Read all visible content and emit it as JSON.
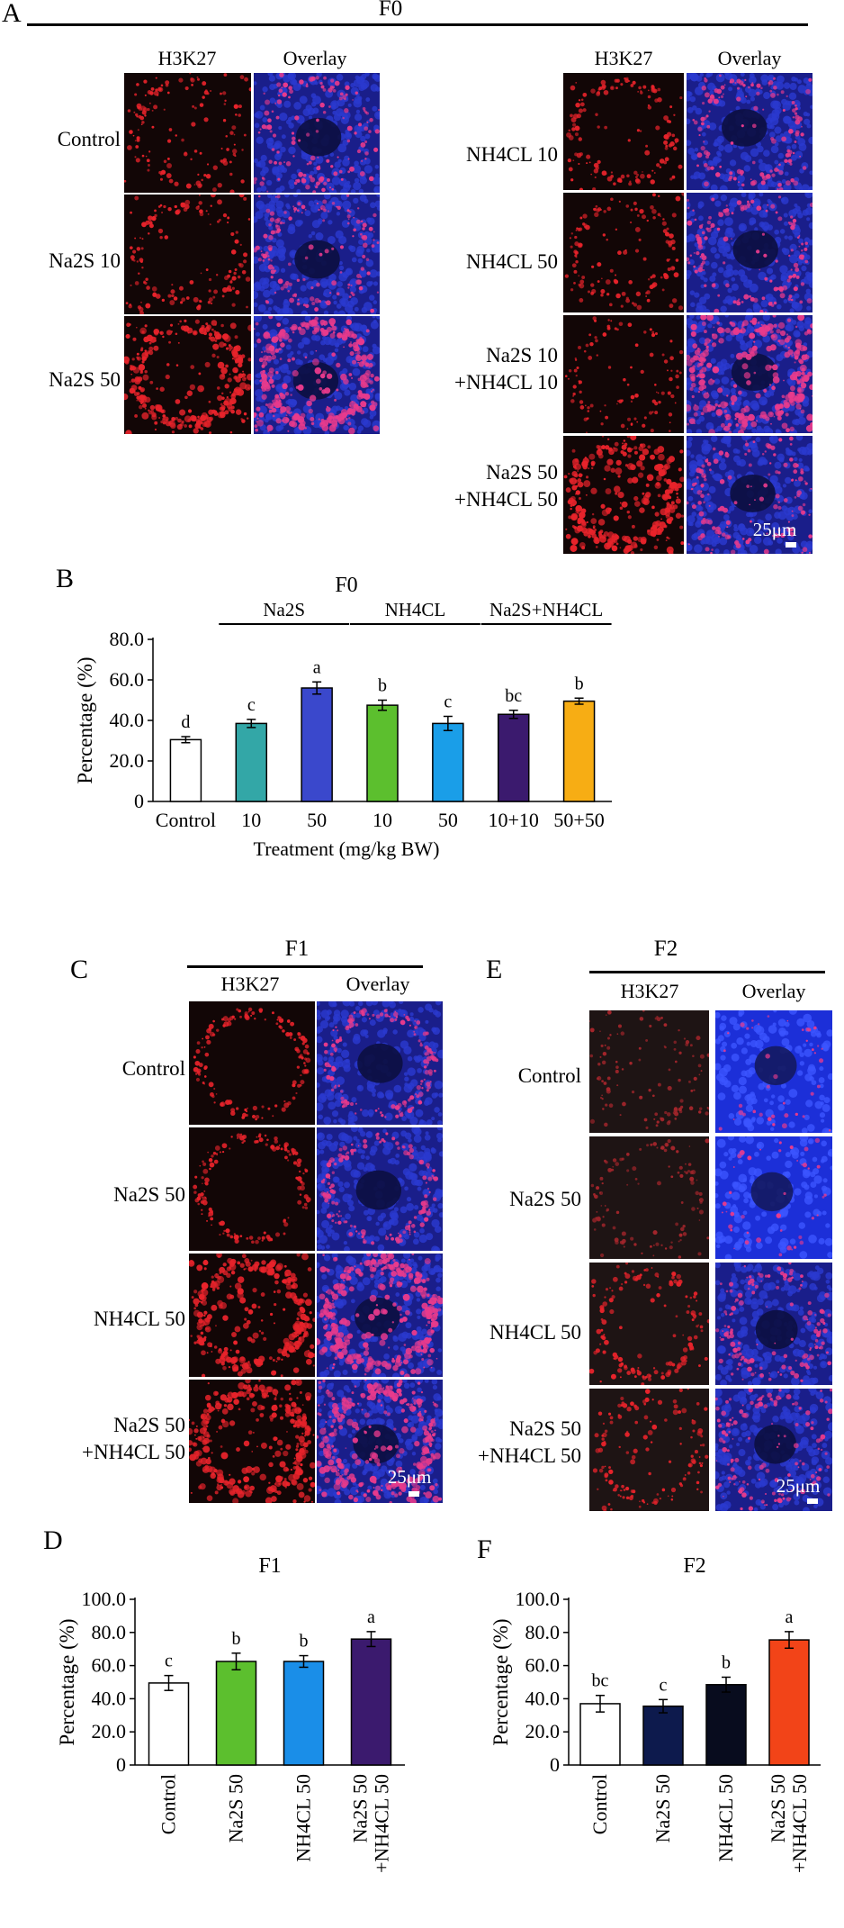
{
  "panel_labels": {
    "A": "A",
    "B": "B",
    "C": "C",
    "D": "D",
    "E": "E",
    "F": "F"
  },
  "panelA": {
    "group_title": "F0",
    "col_h3k27": "H3K27",
    "col_overlay": "Overlay",
    "left_rows": [
      "Control",
      "Na2S 10",
      "Na2S 50"
    ],
    "right_rows": [
      "NH4CL 10",
      "NH4CL 50",
      "Na2S 10\n+NH4CL 10",
      "Na2S 50\n+NH4CL 50"
    ],
    "scale_bar": "25μm"
  },
  "panelC": {
    "group_title": "F1",
    "col_h3k27": "H3K27",
    "col_overlay": "Overlay",
    "rows": [
      "Control",
      "Na2S 50",
      "NH4CL 50",
      "Na2S 50\n+NH4CL 50"
    ],
    "scale_bar": "25μm"
  },
  "panelE": {
    "group_title": "F2",
    "col_h3k27": "H3K27",
    "col_overlay": "Overlay",
    "rows": [
      "Control",
      "Na2S 50",
      "NH4CL 50",
      "Na2S 50\n+NH4CL 50"
    ],
    "scale_bar": "25μm"
  },
  "chart_data": [
    {
      "id": "B",
      "type": "bar",
      "title": "F0",
      "xlabel": "Treatment (mg/kg BW)",
      "ylabel": "Percentage (%)",
      "ylim": [
        0,
        80
      ],
      "yticks": [
        "0",
        "20.0",
        "40.0",
        "60.0",
        "80.0"
      ],
      "categories": [
        "Control",
        "10",
        "50",
        "10",
        "50",
        "10+10",
        "50+50"
      ],
      "values": [
        30.5,
        38.5,
        56.0,
        47.5,
        38.5,
        43.0,
        49.5
      ],
      "errors": [
        1.5,
        2.0,
        3.0,
        2.5,
        3.5,
        2.0,
        1.5
      ],
      "letters": [
        "d",
        "c",
        "a",
        "b",
        "c",
        "bc",
        "b"
      ],
      "colors": [
        "#ffffff",
        "#33a7a7",
        "#3a48cc",
        "#5cbf2e",
        "#1a9ee8",
        "#3b1a6e",
        "#f7ad14"
      ],
      "groups": [
        {
          "label": "Na2S",
          "from": 1,
          "to": 2
        },
        {
          "label": "NH4CL",
          "from": 3,
          "to": 4
        },
        {
          "label": "Na2S+NH4CL",
          "from": 5,
          "to": 6
        }
      ],
      "grid": false
    },
    {
      "id": "D",
      "type": "bar",
      "title": "F1",
      "xlabel": "",
      "ylabel": "Percentage (%)",
      "ylim": [
        0,
        100
      ],
      "yticks": [
        "0",
        "20.0",
        "40.0",
        "60.0",
        "80.0",
        "100.0"
      ],
      "categories": [
        "Control",
        "Na2S 50",
        "NH4CL 50",
        "Na2S 50\n+NH4CL 50"
      ],
      "values": [
        49.5,
        62.5,
        62.5,
        76.0
      ],
      "errors": [
        4.5,
        5.0,
        3.5,
        4.5
      ],
      "letters": [
        "c",
        "b",
        "b",
        "a"
      ],
      "colors": [
        "#ffffff",
        "#5cbf2e",
        "#1a8ee8",
        "#3b1a6e"
      ],
      "grid": false
    },
    {
      "id": "F",
      "type": "bar",
      "title": "F2",
      "xlabel": "",
      "ylabel": "Percentage (%)",
      "ylim": [
        0,
        100
      ],
      "yticks": [
        "0",
        "20.0",
        "40.0",
        "60.0",
        "80.0",
        "100.0"
      ],
      "categories": [
        "Control",
        "Na2S 50",
        "NH4CL 50",
        "Na2S 50\n+NH4CL 50"
      ],
      "values": [
        37.0,
        35.5,
        48.5,
        75.5
      ],
      "errors": [
        5.0,
        4.0,
        4.5,
        5.0
      ],
      "letters": [
        "bc",
        "c",
        "b",
        "a"
      ],
      "colors": [
        "#ffffff",
        "#0d1a4d",
        "#080c1e",
        "#f24418"
      ],
      "grid": false
    }
  ]
}
